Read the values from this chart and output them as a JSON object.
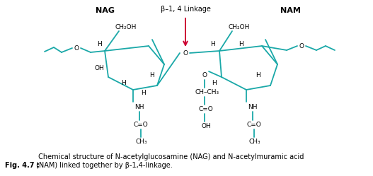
{
  "bg_color": "#FFFFFF",
  "sc": "#1AA8A8",
  "tc": "#000000",
  "ac": "#CC0033",
  "nag_label": "NAG",
  "nam_label": "NAM",
  "linkage_label": "β–1, 4 Linkage",
  "caption_bold": "Fig. 4.7 :",
  "caption_normal": " Chemical structure of N-acetylglucosamine (NAG) and N-acetylmuramic acid\n(NAM) linked together by β-1,4-linkage."
}
